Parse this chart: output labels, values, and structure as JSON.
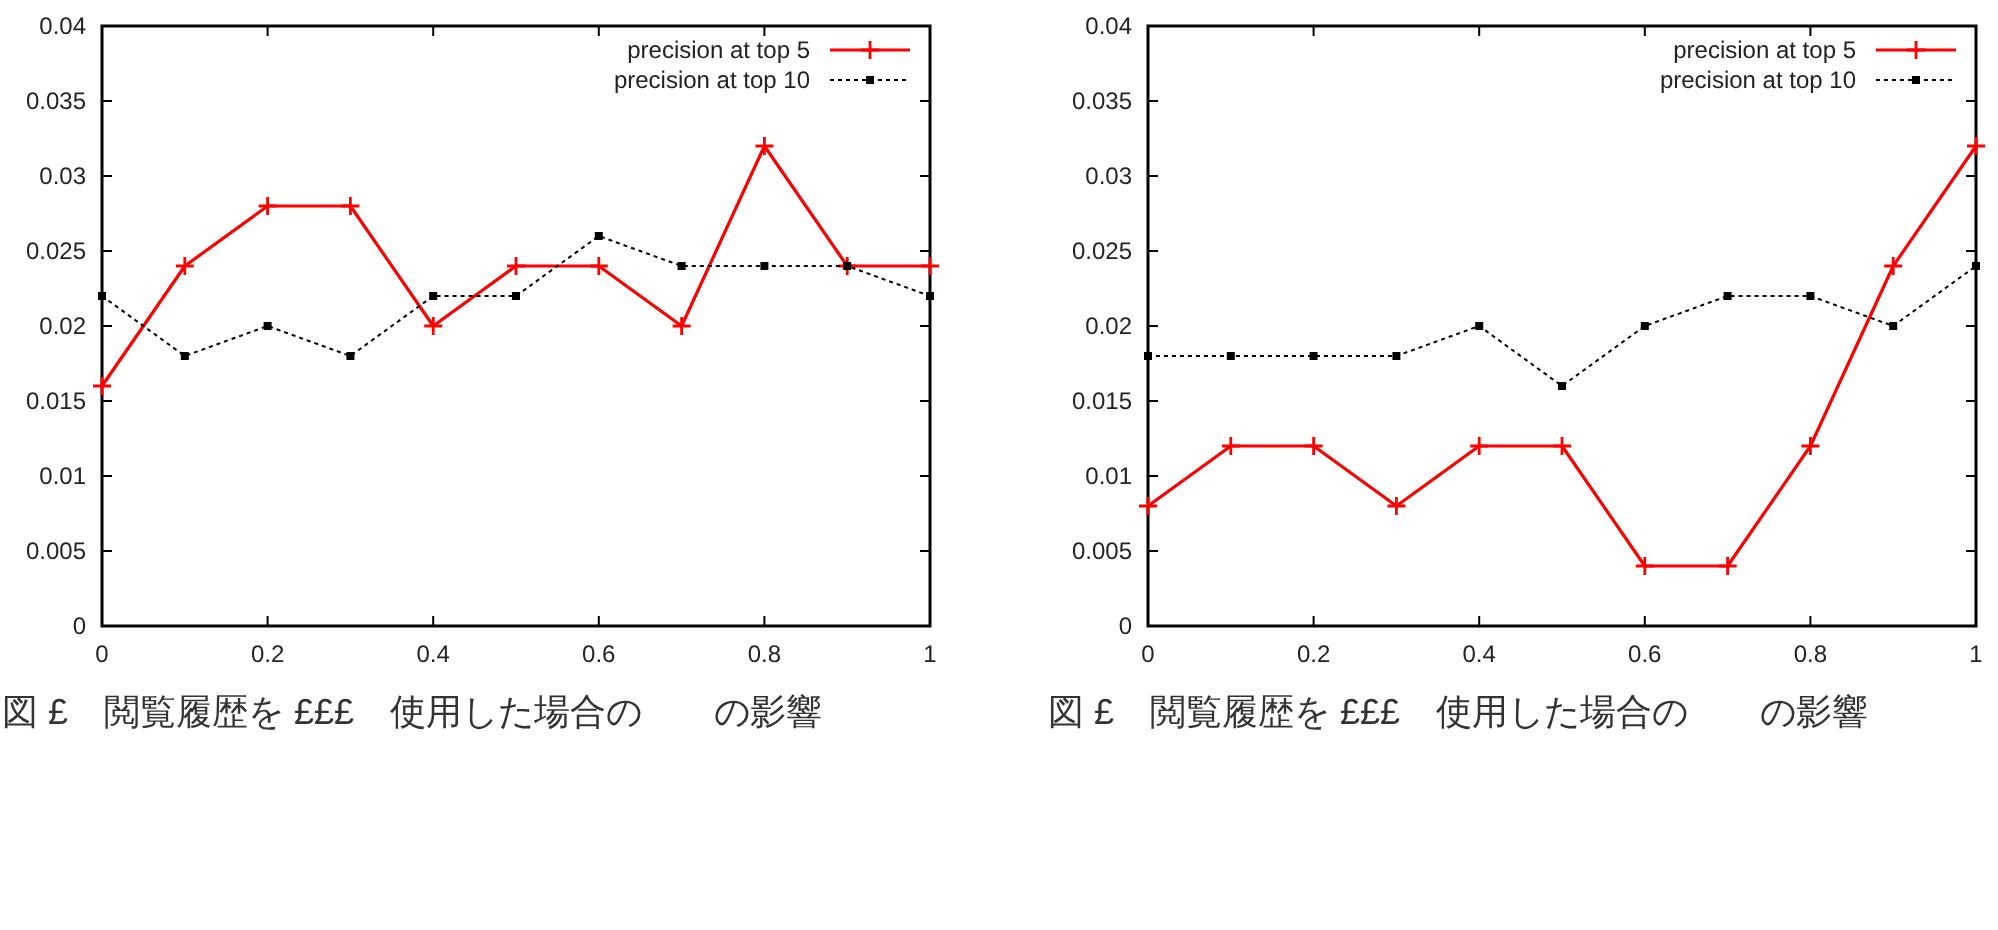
{
  "chart_data": [
    {
      "type": "line",
      "x": [
        0,
        0.1,
        0.2,
        0.3,
        0.4,
        0.5,
        0.6,
        0.7,
        0.8,
        0.9,
        1
      ],
      "xlim": [
        0,
        1
      ],
      "xticks": [
        0,
        0.2,
        0.4,
        0.6,
        0.8,
        1
      ],
      "ylim": [
        0,
        0.04
      ],
      "yticks": [
        0,
        0.005,
        0.01,
        0.015,
        0.02,
        0.025,
        0.03,
        0.035,
        0.04
      ],
      "legend": "top right",
      "grid": false,
      "series": [
        {
          "name": "precision at top 5",
          "color": "#ff0000",
          "marker": "cross",
          "line_style": "solid",
          "values": [
            0.016,
            0.024,
            0.028,
            0.028,
            0.02,
            0.024,
            0.024,
            0.02,
            0.032,
            0.024,
            0.024
          ]
        },
        {
          "name": "precision at top 10",
          "color": "#000000",
          "marker": "square",
          "line_style": "dotted",
          "values": [
            0.022,
            0.018,
            0.02,
            0.018,
            0.022,
            0.022,
            0.026,
            0.024,
            0.024,
            0.024,
            0.022
          ]
        }
      ],
      "annotations": [
        "図 £　閲覧履歴を £££　使用した場合の　　の影響"
      ]
    },
    {
      "type": "line",
      "x": [
        0,
        0.1,
        0.2,
        0.3,
        0.4,
        0.5,
        0.6,
        0.7,
        0.8,
        0.9,
        1
      ],
      "xlim": [
        0,
        1
      ],
      "xticks": [
        0,
        0.2,
        0.4,
        0.6,
        0.8,
        1
      ],
      "ylim": [
        0,
        0.04
      ],
      "yticks": [
        0,
        0.005,
        0.01,
        0.015,
        0.02,
        0.025,
        0.03,
        0.035,
        0.04
      ],
      "legend": "top right",
      "grid": false,
      "series": [
        {
          "name": "precision at top 5",
          "color": "#ff0000",
          "marker": "cross",
          "line_style": "solid",
          "values": [
            0.008,
            0.012,
            0.012,
            0.008,
            0.012,
            0.012,
            0.004,
            0.004,
            0.012,
            0.024,
            0.032
          ]
        },
        {
          "name": "precision at top 10",
          "color": "#000000",
          "marker": "square",
          "line_style": "dotted",
          "values": [
            0.018,
            0.018,
            0.018,
            0.018,
            0.02,
            0.016,
            0.02,
            0.022,
            0.022,
            0.02,
            0.024
          ]
        }
      ],
      "annotations": [
        "図 £　閲覧履歴を £££　使用した場合の　　の影響"
      ]
    }
  ]
}
